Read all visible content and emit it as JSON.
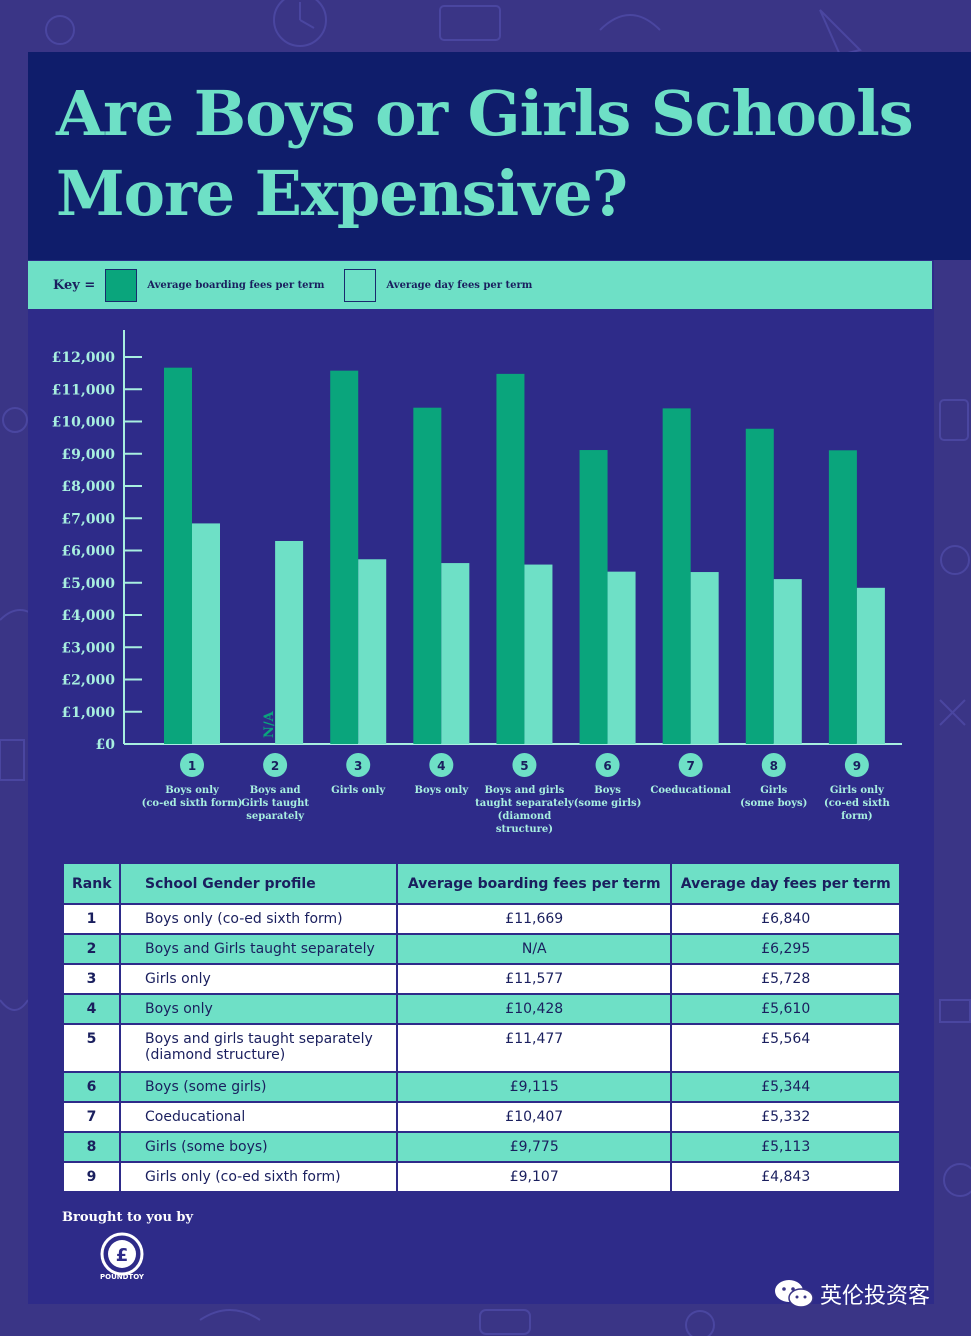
{
  "header": {
    "title": "Are Boys or Girls Schools\nMore Expensive?"
  },
  "key": {
    "label": "Key =",
    "boarding": "Average boarding fees per term",
    "day": "Average day fees per term"
  },
  "colors": {
    "boarding": "#0aa57c",
    "day": "#6ee0c6",
    "panel": "#2e2b89",
    "title_band": "#0f1d6b",
    "text_light": "#a8efe0"
  },
  "chart_data": {
    "type": "bar",
    "title": "Are Boys or Girls Schools More Expensive?",
    "ylim": [
      0,
      12000
    ],
    "yticks": [
      "£0",
      "£1,000",
      "£2,000",
      "£3,000",
      "£4,000",
      "£5,000",
      "£6,000",
      "£7,000",
      "£8,000",
      "£9,000",
      "£10,000",
      "£11,000",
      "£12,000"
    ],
    "ranks": [
      "1",
      "2",
      "3",
      "4",
      "5",
      "6",
      "7",
      "8",
      "9"
    ],
    "categories": [
      "Boys only\n(co-ed sixth form)",
      "Boys and\nGirls taught\nseparately",
      "Girls only",
      "Boys only",
      "Boys and girls\ntaught separately\n(diamond structure)",
      "Boys\n(some girls)",
      "Coeducational",
      "Girls\n(some boys)",
      "Girls only\n(co-ed sixth\nform)"
    ],
    "na_label": "N/A",
    "series": [
      {
        "name": "Average boarding fees per term",
        "values": [
          11669,
          null,
          11577,
          10428,
          11477,
          9115,
          10407,
          9775,
          9107
        ]
      },
      {
        "name": "Average day fees per term",
        "values": [
          6840,
          6295,
          5728,
          5610,
          5564,
          5344,
          5332,
          5113,
          4843
        ]
      }
    ],
    "legend": "top"
  },
  "table": {
    "headers": [
      "Rank",
      "School Gender profile",
      "Average boarding fees per term",
      "Average day fees per term"
    ],
    "rows": [
      [
        "1",
        "Boys only (co-ed sixth form)",
        "£11,669",
        "£6,840"
      ],
      [
        "2",
        "Boys and Girls taught separately",
        "N/A",
        "£6,295"
      ],
      [
        "3",
        "Girls only",
        "£11,577",
        "£5,728"
      ],
      [
        "4",
        "Boys only",
        "£10,428",
        "£5,610"
      ],
      [
        "5",
        "Boys and girls taught separately (diamond structure)",
        "£11,477",
        "£5,564"
      ],
      [
        "6",
        "Boys (some girls)",
        "£9,115",
        "£5,344"
      ],
      [
        "7",
        "Coeducational",
        "£10,407",
        "£5,332"
      ],
      [
        "8",
        "Girls (some boys)",
        "£9,775",
        "£5,113"
      ],
      [
        "9",
        "Girls only (co-ed sixth form)",
        "£9,107",
        "£4,843"
      ]
    ]
  },
  "footer": {
    "brought": "Brought to you by",
    "logo_text": "POUNDTOY",
    "watermark": "英伦投资客"
  }
}
